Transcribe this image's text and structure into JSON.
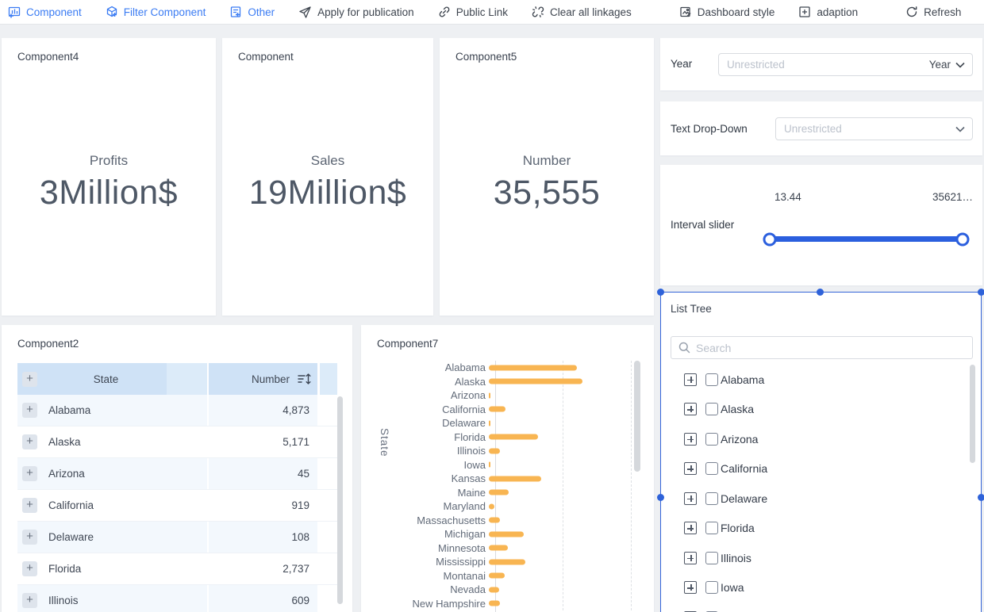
{
  "toolbar": {
    "items": [
      {
        "label": "Component"
      },
      {
        "label": "Filter Component"
      },
      {
        "label": "Other"
      },
      {
        "label": "Apply for publication"
      },
      {
        "label": "Public Link"
      },
      {
        "label": "Clear all linkages"
      },
      {
        "label": "Dashboard style"
      },
      {
        "label": "adaption"
      },
      {
        "label": "Refresh"
      }
    ]
  },
  "kpi_cards": [
    {
      "title": "Component4",
      "label": "Profits",
      "value": "3Million$"
    },
    {
      "title": "Component",
      "label": "Sales",
      "value": "19Million$"
    },
    {
      "title": "Component5",
      "label": "Number",
      "value": "35,555"
    }
  ],
  "filters": {
    "year": {
      "label": "Year",
      "placeholder": "Unrestricted",
      "suffix": "Year"
    },
    "text_dropdown": {
      "label": "Text Drop-Down",
      "value": "Unrestricted"
    },
    "interval_slider": {
      "label": "Interval slider",
      "min_value": "13.44",
      "max_value": "35621…"
    },
    "list_tree": {
      "title": "List Tree",
      "search_placeholder": "Search",
      "items": [
        "Alabama",
        "Alaska",
        "Arizona",
        "California",
        "Delaware",
        "Florida",
        "Illinois",
        "Iowa"
      ],
      "partial_item_visible": true
    }
  },
  "component2": {
    "title": "Component2",
    "columns": [
      "State",
      "Number"
    ],
    "rows": [
      {
        "state": "Alabama",
        "number": "4,873"
      },
      {
        "state": "Alaska",
        "number": "5,171"
      },
      {
        "state": "Arizona",
        "number": "45"
      },
      {
        "state": "California",
        "number": "919"
      },
      {
        "state": "Delaware",
        "number": "108"
      },
      {
        "state": "Florida",
        "number": "2,737"
      },
      {
        "state": "Illinois",
        "number": "609"
      }
    ]
  },
  "chart_data": {
    "type": "bar",
    "title": "Component7",
    "orientation": "horizontal",
    "ylabel": "State",
    "xlabel": "",
    "xlim": [
      0,
      7500
    ],
    "gridlines_x": [
      3750,
      7500
    ],
    "grid_style": "dashed",
    "bar_color": "#f8b552",
    "categories": [
      "Alabama",
      "Alaska",
      "Arizona",
      "California",
      "Delaware",
      "Florida",
      "Illinois",
      "Iowa",
      "Kansas",
      "Maine",
      "Maryland",
      "Massachusetts",
      "Michigan",
      "Minnesota",
      "Mississippi",
      "Montanai",
      "Nevada",
      "New Hampshire"
    ],
    "values": [
      4873,
      5171,
      45,
      919,
      108,
      2737,
      609,
      70,
      2900,
      1100,
      310,
      620,
      1950,
      1060,
      2000,
      890,
      580,
      620
    ]
  },
  "colors": {
    "toolbar_blue": "#3b7cf3",
    "toolbar_dark": "#3f4650",
    "selection_blue": "#3464d8",
    "slider_blue": "#2b5fde",
    "bar_orange": "#f8b552",
    "table_header_blue": "#cfe2f6",
    "table_row_tint": "#f3f8fd",
    "page_background": "#eef0f3"
  }
}
